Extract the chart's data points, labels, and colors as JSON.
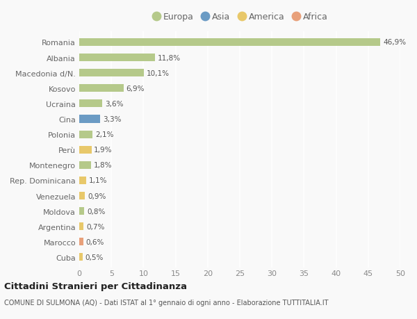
{
  "categories": [
    "Romania",
    "Albania",
    "Macedonia d/N.",
    "Kosovo",
    "Ucraina",
    "Cina",
    "Polonia",
    "Perù",
    "Montenegro",
    "Rep. Dominicana",
    "Venezuela",
    "Moldova",
    "Argentina",
    "Marocco",
    "Cuba"
  ],
  "values": [
    46.9,
    11.8,
    10.1,
    6.9,
    3.6,
    3.3,
    2.1,
    1.9,
    1.8,
    1.1,
    0.9,
    0.8,
    0.7,
    0.6,
    0.5
  ],
  "labels": [
    "46,9%",
    "11,8%",
    "10,1%",
    "6,9%",
    "3,6%",
    "3,3%",
    "2,1%",
    "1,9%",
    "1,8%",
    "1,1%",
    "0,9%",
    "0,8%",
    "0,7%",
    "0,6%",
    "0,5%"
  ],
  "continents": [
    "Europa",
    "Europa",
    "Europa",
    "Europa",
    "Europa",
    "Asia",
    "Europa",
    "America",
    "Europa",
    "America",
    "America",
    "Europa",
    "America",
    "Africa",
    "America"
  ],
  "continent_colors": {
    "Europa": "#b5c98a",
    "Asia": "#6b9bc4",
    "America": "#e8c86a",
    "Africa": "#e8a07a"
  },
  "legend_entries": [
    "Europa",
    "Asia",
    "America",
    "Africa"
  ],
  "legend_colors": [
    "#b5c98a",
    "#6b9bc4",
    "#e8c86a",
    "#e8a07a"
  ],
  "title": "Cittadini Stranieri per Cittadinanza",
  "subtitle": "COMUNE DI SULMONA (AQ) - Dati ISTAT al 1° gennaio di ogni anno - Elaborazione TUTTITALIA.IT",
  "xlim": [
    0,
    50
  ],
  "xticks": [
    0,
    5,
    10,
    15,
    20,
    25,
    30,
    35,
    40,
    45,
    50
  ],
  "background_color": "#f9f9f9",
  "grid_color": "#e8e8e8",
  "bar_height": 0.5
}
